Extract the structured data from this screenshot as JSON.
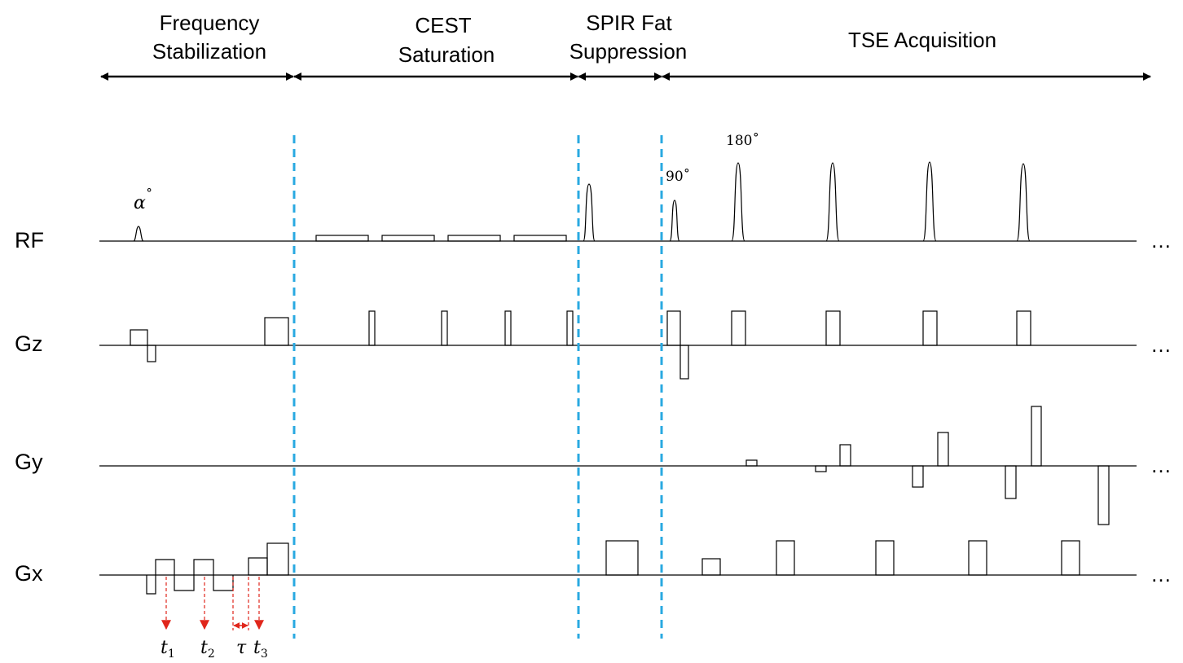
{
  "phases": [
    {
      "id": "freq",
      "lines": [
        "Frequency",
        "Stabilization"
      ]
    },
    {
      "id": "cest",
      "lines": [
        "CEST",
        "Saturation"
      ]
    },
    {
      "id": "spir",
      "lines": [
        "SPIR Fat",
        "Suppression"
      ]
    },
    {
      "id": "tse",
      "lines": [
        "TSE Acquisition"
      ]
    }
  ],
  "rows": {
    "rf": "RF",
    "gz": "Gz",
    "gy": "Gy",
    "gx": "Gx"
  },
  "ellipsis": "…",
  "rf_labels": {
    "alpha": "α",
    "alpha_degree": "˚",
    "deg90": "90˚",
    "deg180": "180˚"
  },
  "time_labels": [
    {
      "base": "t",
      "sub": "1"
    },
    {
      "base": "t",
      "sub": "2"
    },
    {
      "base": "τ",
      "sub": ""
    },
    {
      "base": "t",
      "sub": "3"
    }
  ],
  "colors": {
    "separator": "#29a9e1",
    "timing_marker": "#e0261b",
    "line": "#000000"
  }
}
